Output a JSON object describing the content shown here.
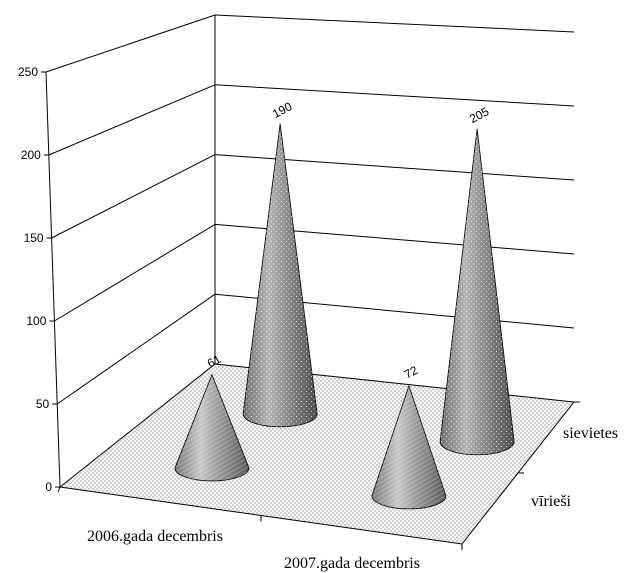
{
  "chart_data": {
    "type": "3d-cone",
    "categories": [
      "2006.gada decembris",
      "2007.gada decembris"
    ],
    "series": [
      {
        "name": "vīrieši",
        "values": [
          61,
          72
        ]
      },
      {
        "name": "sievietes",
        "values": [
          190,
          205
        ]
      }
    ],
    "ylim": [
      0,
      250
    ],
    "yticks": [
      0,
      50,
      100,
      150,
      200,
      250
    ],
    "ytick_labels": [
      "0",
      "50",
      "100",
      "150",
      "200",
      "250"
    ],
    "grid": true,
    "title": "",
    "xlabel": "",
    "ylabel": ""
  }
}
